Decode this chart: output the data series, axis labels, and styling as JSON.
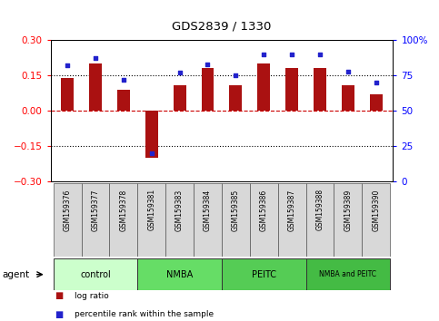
{
  "title": "GDS2839 / 1330",
  "samples": [
    "GSM159376",
    "GSM159377",
    "GSM159378",
    "GSM159381",
    "GSM159383",
    "GSM159384",
    "GSM159385",
    "GSM159386",
    "GSM159387",
    "GSM159388",
    "GSM159389",
    "GSM159390"
  ],
  "log_ratio": [
    0.14,
    0.2,
    0.09,
    -0.2,
    0.11,
    0.18,
    0.11,
    0.2,
    0.18,
    0.18,
    0.11,
    0.07
  ],
  "percentile_rank": [
    82,
    87,
    72,
    20,
    77,
    83,
    75,
    90,
    90,
    90,
    78,
    70
  ],
  "bar_color": "#aa1111",
  "dot_color": "#2222cc",
  "ylim_left": [
    -0.3,
    0.3
  ],
  "ylim_right": [
    0,
    100
  ],
  "yticks_left": [
    -0.3,
    -0.15,
    0,
    0.15,
    0.3
  ],
  "yticks_right": [
    0,
    25,
    50,
    75,
    100
  ],
  "groups": [
    {
      "label": "control",
      "start": 0,
      "end": 2,
      "color": "#ccffcc"
    },
    {
      "label": "NMBA",
      "start": 3,
      "end": 5,
      "color": "#66dd66"
    },
    {
      "label": "PEITC",
      "start": 6,
      "end": 8,
      "color": "#55cc55"
    },
    {
      "label": "NMBA and PEITC",
      "start": 9,
      "end": 11,
      "color": "#44bb44"
    }
  ],
  "legend_items": [
    {
      "label": "log ratio",
      "color": "#aa1111"
    },
    {
      "label": "percentile rank within the sample",
      "color": "#2222cc"
    }
  ],
  "plot_bg": "#ffffff"
}
